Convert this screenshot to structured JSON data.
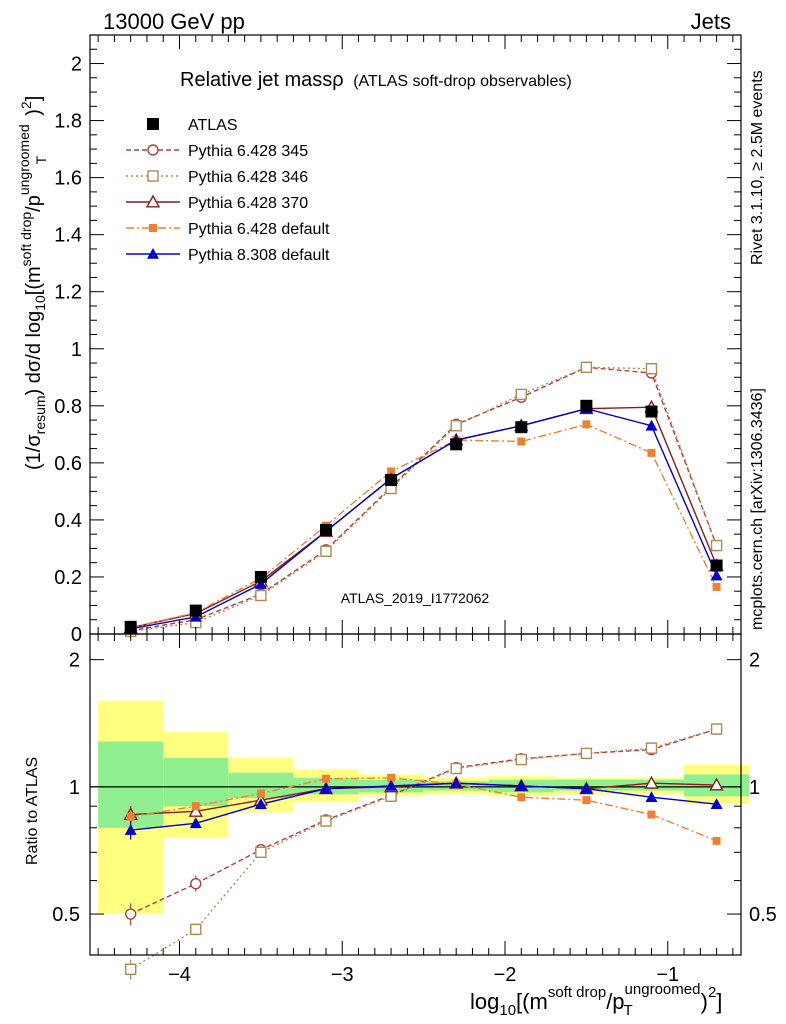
{
  "header": {
    "left": "13000 GeV pp",
    "right": "Jets"
  },
  "side_labels": {
    "rivet": "Rivet 3.1.10, ≥ 2.5M events",
    "mcplots": "mcplots.cern.ch [arXiv:1306.3436]"
  },
  "watermark": "ATLAS_2019_I1772062",
  "title": {
    "main": "Relative jet massρ",
    "sub": "(ATLAS soft-drop observables)"
  },
  "axes": {
    "main_ylabel": {
      "p1": "(1/σ",
      "p1_sub": "resum",
      "p2": ") dσ/d log",
      "p2_sub": "10",
      "p3": "[(m",
      "p3_sup": "soft drop",
      "p4": "/p",
      "p4_sup": "ungroomed",
      "p4_sub": "T",
      "p5": ")",
      "p5_sup": "2",
      "p6": "]"
    },
    "ratio_ylabel": "Ratio to ATLAS",
    "xlabel": {
      "p1": "log",
      "p1_sub": "10",
      "p2": "[(m",
      "p2_sup": "soft drop",
      "p3": "/p",
      "p3_sup": "ungroomed",
      "p3_sub": "T",
      "p4": ")",
      "p4_sup": "2",
      "p5": "]"
    },
    "x_ticks": [
      "−4",
      "−3",
      "−2",
      "−1"
    ],
    "main_y_ticks": [
      "0",
      "0.2",
      "0.4",
      "0.6",
      "0.8",
      "1",
      "1.2",
      "1.4",
      "1.6",
      "1.8",
      "2"
    ],
    "ratio_y_ticks": [
      "0.5",
      "1",
      "2"
    ]
  },
  "chart_data": {
    "type": "line",
    "x_range": [
      -4.55,
      -0.55
    ],
    "main_ylim": [
      0,
      2.1
    ],
    "ratio_ylim": [
      0.4,
      2.3
    ],
    "ratio_scale": "log",
    "x": [
      -4.3,
      -3.9,
      -3.5,
      -3.1,
      -2.7,
      -2.3,
      -1.9,
      -1.5,
      -1.1,
      -0.7
    ],
    "bin_edges": [
      -4.5,
      -4.1,
      -3.7,
      -3.3,
      -2.9,
      -2.5,
      -2.1,
      -1.7,
      -1.3,
      -0.9,
      -0.5
    ],
    "band_yellow": [
      [
        0.5,
        1.6
      ],
      [
        0.76,
        1.35
      ],
      [
        0.87,
        1.17
      ],
      [
        0.92,
        1.1
      ],
      [
        0.95,
        1.07
      ],
      [
        0.96,
        1.05
      ],
      [
        0.95,
        1.06
      ],
      [
        0.96,
        1.05
      ],
      [
        0.96,
        1.05
      ],
      [
        0.91,
        1.13
      ]
    ],
    "band_green": [
      [
        0.8,
        1.28
      ],
      [
        0.9,
        1.17
      ],
      [
        0.94,
        1.08
      ],
      [
        0.96,
        1.05
      ],
      [
        0.97,
        1.04
      ],
      [
        0.98,
        1.03
      ],
      [
        0.97,
        1.04
      ],
      [
        0.98,
        1.04
      ],
      [
        0.98,
        1.04
      ],
      [
        0.95,
        1.07
      ]
    ],
    "series": [
      {
        "name": "ATLAS",
        "color": "#000000",
        "marker": "square-filled",
        "dash": "none",
        "values": [
          0.025,
          0.082,
          0.2,
          0.365,
          0.54,
          0.665,
          0.725,
          0.8,
          0.78,
          0.24
        ],
        "ratio": [
          1,
          1,
          1,
          1,
          1,
          1,
          1,
          1,
          1,
          1
        ]
      },
      {
        "name": "Pythia 6.428 345",
        "color": "#b0403f",
        "marker": "circle-open",
        "dash": "5,3",
        "values": [
          0.012,
          0.05,
          0.14,
          0.295,
          0.515,
          0.735,
          0.83,
          0.935,
          0.915,
          0.31
        ],
        "ratio": [
          0.5,
          0.59,
          0.71,
          0.835,
          0.955,
          1.11,
          1.165,
          1.2,
          1.225,
          1.37
        ],
        "ratio_err": [
          0.03,
          0.025,
          0.01,
          0,
          0,
          0,
          0,
          0,
          0,
          0
        ]
      },
      {
        "name": "Pythia 6.428 346",
        "color": "#b08850",
        "marker": "square-open",
        "dash": "2,3",
        "values": [
          0.009,
          0.04,
          0.135,
          0.29,
          0.51,
          0.73,
          0.84,
          0.935,
          0.93,
          0.31
        ],
        "ratio": [
          0.37,
          0.46,
          0.7,
          0.83,
          0.95,
          1.105,
          1.16,
          1.2,
          1.235,
          1.37
        ],
        "ratio_err": [
          0.02,
          0.015,
          0.01,
          0,
          0,
          0,
          0,
          0,
          0,
          0
        ]
      },
      {
        "name": "Pythia 6.428 370",
        "color": "#8b1a1a",
        "marker": "triangle-open",
        "dash": "none",
        "values": [
          0.022,
          0.072,
          0.185,
          0.36,
          0.545,
          0.68,
          0.73,
          0.79,
          0.795,
          0.24
        ],
        "ratio": [
          0.86,
          0.875,
          0.93,
          0.99,
          1.0,
          1.02,
          1.005,
          0.99,
          1.02,
          1.01
        ],
        "ratio_err": [
          0.04,
          0.02,
          0.01,
          0,
          0,
          0,
          0,
          0,
          0,
          0
        ]
      },
      {
        "name": "Pythia 6.428 default",
        "color": "#f08030",
        "marker": "square-small",
        "dash": "8,3,2,3",
        "values": [
          0.022,
          0.075,
          0.195,
          0.38,
          0.57,
          0.68,
          0.675,
          0.735,
          0.635,
          0.165
        ],
        "ratio": [
          0.85,
          0.9,
          0.965,
          1.045,
          1.05,
          1.015,
          0.945,
          0.93,
          0.86,
          0.745
        ],
        "ratio_err": [
          0.03,
          0.015,
          0.01,
          0,
          0,
          0,
          0,
          0,
          0,
          0
        ]
      },
      {
        "name": "Pythia 8.308 default",
        "color": "#0000d0",
        "marker": "triangle-filled",
        "dash": "none",
        "values": [
          0.018,
          0.06,
          0.175,
          0.36,
          0.545,
          0.68,
          0.73,
          0.79,
          0.73,
          0.205
        ],
        "ratio": [
          0.79,
          0.82,
          0.91,
          0.99,
          1.005,
          1.02,
          1.005,
          0.99,
          0.945,
          0.91
        ],
        "ratio_err": [
          0.04,
          0.02,
          0.01,
          0,
          0,
          0,
          0,
          0,
          0,
          0
        ]
      }
    ]
  }
}
